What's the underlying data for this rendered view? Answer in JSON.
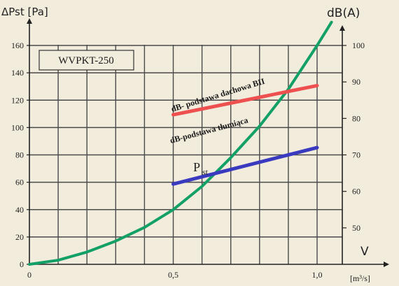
{
  "chart_data": {
    "type": "line",
    "model": "WVPKT-250",
    "x_axis": {
      "label": "V",
      "unit": "[m³/s]",
      "ticks": [
        "0",
        "0,5",
        "1,0"
      ],
      "range": [
        0,
        1.0
      ]
    },
    "y_left": {
      "label": "ΔPst  [Pa]",
      "range": [
        0,
        160
      ],
      "ticks": [
        0,
        20,
        40,
        60,
        80,
        100,
        120,
        140,
        160
      ]
    },
    "y_right": {
      "label": "dB(A)",
      "range": [
        40,
        100
      ],
      "ticks": [
        50,
        60,
        70,
        80,
        90,
        100
      ]
    },
    "series": [
      {
        "name": "Pst",
        "axis": "left",
        "color": "#13a066",
        "x": [
          0,
          0.1,
          0.2,
          0.3,
          0.4,
          0.5,
          0.6,
          0.7,
          0.8,
          0.9,
          1.0,
          1.05
        ],
        "y": [
          0,
          3,
          9,
          17,
          27,
          40,
          57,
          78,
          101,
          128,
          160,
          177
        ]
      },
      {
        "name": "dB- podstawa dachowa BII",
        "axis": "right",
        "color": "#ee5050",
        "x": [
          0.5,
          1.0
        ],
        "y": [
          81,
          89
        ]
      },
      {
        "name": "dB-podstawa tłumiąca",
        "axis": "right",
        "color": "#3a3ac0",
        "x": [
          0.5,
          1.0
        ],
        "y": [
          62,
          72
        ]
      }
    ],
    "grid": true
  }
}
